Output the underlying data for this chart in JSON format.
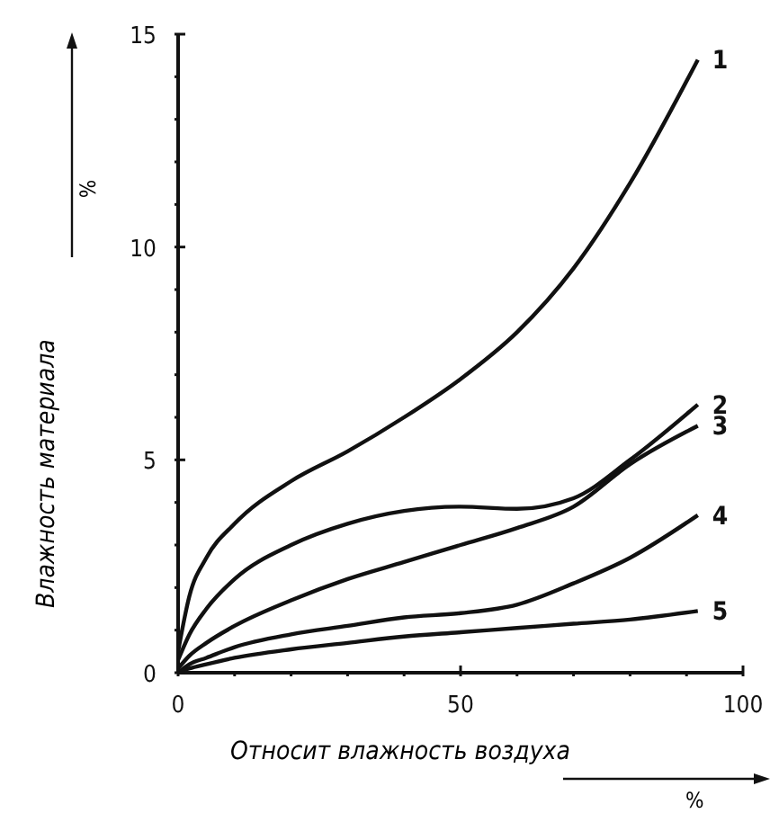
{
  "chart_data": {
    "type": "line",
    "xlabel": "Относит влажность воздуха",
    "ylabel": "Влажность материала",
    "annotations": [
      "%",
      "%"
    ],
    "xlim": [
      0,
      100
    ],
    "ylim": [
      0,
      15
    ],
    "xticks": [
      0,
      {
        "value": 10,
        "label": null
      },
      {
        "value": 20,
        "label": null
      },
      {
        "value": 30,
        "label": null
      },
      {
        "value": 40,
        "label": null
      },
      50,
      {
        "value": 60,
        "label": null
      },
      {
        "value": 70,
        "label": null
      },
      {
        "value": 80,
        "label": null
      },
      {
        "value": 90,
        "label": null
      },
      100
    ],
    "yticks": [
      0,
      {
        "value": 1,
        "label": null
      },
      {
        "value": 2,
        "label": null
      },
      {
        "value": 3,
        "label": null
      },
      {
        "value": 4,
        "label": null
      },
      5,
      {
        "value": 6,
        "label": null
      },
      {
        "value": 7,
        "label": null
      },
      {
        "value": 8,
        "label": null
      },
      {
        "value": 9,
        "label": null
      },
      10,
      {
        "value": 11,
        "label": null
      },
      {
        "value": 12,
        "label": null
      },
      {
        "value": 13,
        "label": null
      },
      {
        "value": 14,
        "label": null
      },
      15
    ],
    "grid": false,
    "legend": false,
    "marker": "none",
    "line_style": "solid",
    "x": [
      0,
      2,
      5,
      10,
      20,
      30,
      40,
      50,
      60,
      70,
      80,
      92
    ],
    "series": [
      {
        "name": "1",
        "color": "#111111",
        "values": [
          0.5,
          1.8,
          2.7,
          3.5,
          4.5,
          5.2,
          6.0,
          6.9,
          8.0,
          9.5,
          11.5,
          14.4
        ]
      },
      {
        "name": "2",
        "color": "#111111",
        "values": [
          0.3,
          0.9,
          1.5,
          2.2,
          3.0,
          3.5,
          3.8,
          3.9,
          3.85,
          4.1,
          5.0,
          6.3
        ]
      },
      {
        "name": "3",
        "color": "#111111",
        "values": [
          0.1,
          0.4,
          0.7,
          1.1,
          1.7,
          2.2,
          2.6,
          3.0,
          3.4,
          3.9,
          4.9,
          5.8
        ]
      },
      {
        "name": "4",
        "color": "#111111",
        "values": [
          0,
          0.2,
          0.35,
          0.6,
          0.9,
          1.1,
          1.3,
          1.4,
          1.6,
          2.1,
          2.7,
          3.7
        ]
      },
      {
        "name": "5",
        "color": "#111111",
        "values": [
          0,
          0.1,
          0.2,
          0.35,
          0.55,
          0.7,
          0.85,
          0.95,
          1.05,
          1.15,
          1.25,
          1.45
        ]
      }
    ]
  }
}
